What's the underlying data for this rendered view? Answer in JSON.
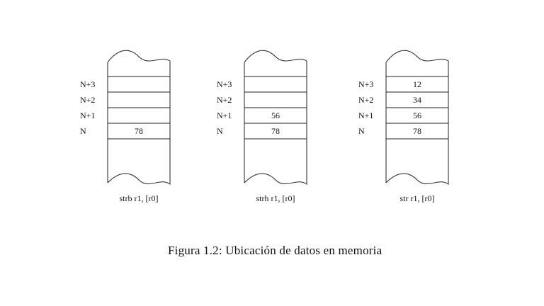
{
  "figure": {
    "caption": "Figura 1.2: Ubicación de datos en memoria",
    "columns": [
      {
        "instruction": "strb r1, [r0]",
        "rows": [
          {
            "addr": "N+3",
            "value": ""
          },
          {
            "addr": "N+2",
            "value": ""
          },
          {
            "addr": "N+1",
            "value": ""
          },
          {
            "addr": "N",
            "value": "78"
          }
        ]
      },
      {
        "instruction": "strh r1, [r0]",
        "rows": [
          {
            "addr": "N+3",
            "value": ""
          },
          {
            "addr": "N+2",
            "value": ""
          },
          {
            "addr": "N+1",
            "value": "56"
          },
          {
            "addr": "N",
            "value": "78"
          }
        ]
      },
      {
        "instruction": "str r1, [r0]",
        "rows": [
          {
            "addr": "N+3",
            "value": "12"
          },
          {
            "addr": "N+2",
            "value": "34"
          },
          {
            "addr": "N+1",
            "value": "56"
          },
          {
            "addr": "N",
            "value": "78"
          }
        ]
      }
    ]
  }
}
